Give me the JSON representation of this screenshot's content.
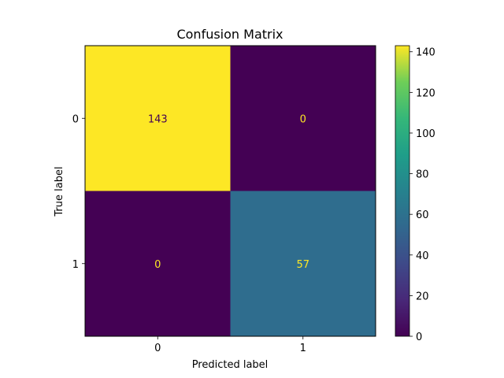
{
  "chart_data": {
    "type": "heatmap",
    "title": "Confusion Matrix",
    "xlabel": "Predicted label",
    "ylabel": "True label",
    "x_categories": [
      "0",
      "1"
    ],
    "y_categories": [
      "0",
      "1"
    ],
    "values": [
      [
        143,
        0
      ],
      [
        0,
        57
      ]
    ],
    "colormap": "viridis",
    "colorbar": {
      "range": [
        0,
        143
      ],
      "ticks": [
        0,
        20,
        40,
        60,
        80,
        100,
        120,
        140
      ]
    },
    "grid": false
  }
}
